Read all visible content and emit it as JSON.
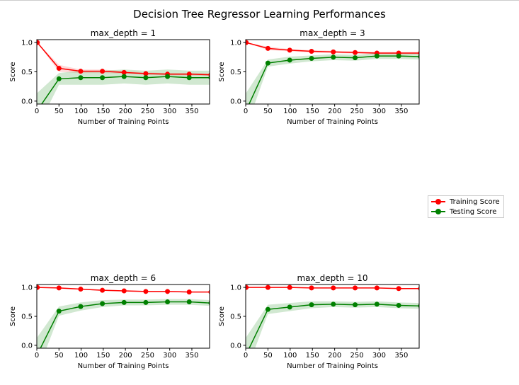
{
  "suptitle": "Decision Tree Regressor Learning Performances",
  "legend": {
    "training": "Training Score",
    "testing": "Testing Score"
  },
  "colors": {
    "training": "#ff0000",
    "testing": "#008000"
  },
  "chart_data": [
    {
      "type": "line",
      "title": "max_depth = 1",
      "xlabel": "Number of Training Points",
      "ylabel": "Score",
      "xlim": [
        0,
        390
      ],
      "ylim": [
        -0.05,
        1.05
      ],
      "xticks": [
        "0",
        "50",
        "100",
        "150",
        "200",
        "250",
        "300",
        "350"
      ],
      "yticks": [
        "0.0",
        "0.5",
        "1.0"
      ],
      "x": [
        1,
        50,
        99,
        148,
        197,
        246,
        295,
        344,
        393
      ],
      "series": [
        {
          "name": "Training Score",
          "values": [
            1.0,
            0.56,
            0.51,
            0.51,
            0.49,
            0.47,
            0.46,
            0.46,
            0.45
          ],
          "band": [
            0.0,
            0.06,
            0.03,
            0.03,
            0.02,
            0.02,
            0.02,
            0.02,
            0.02
          ]
        },
        {
          "name": "Testing Score",
          "values": [
            -0.16,
            0.38,
            0.4,
            0.4,
            0.42,
            0.4,
            0.42,
            0.4,
            0.4
          ],
          "band": [
            0.3,
            0.1,
            0.12,
            0.12,
            0.12,
            0.12,
            0.12,
            0.12,
            0.12
          ]
        }
      ]
    },
    {
      "type": "line",
      "title": "max_depth = 3",
      "xlabel": "Number of Training Points",
      "ylabel": "Score",
      "xlim": [
        0,
        390
      ],
      "ylim": [
        -0.05,
        1.05
      ],
      "xticks": [
        "0",
        "50",
        "100",
        "150",
        "200",
        "250",
        "300",
        "350"
      ],
      "yticks": [
        "0.0",
        "0.5",
        "1.0"
      ],
      "x": [
        1,
        50,
        99,
        148,
        197,
        246,
        295,
        344,
        393
      ],
      "series": [
        {
          "name": "Training Score",
          "values": [
            1.0,
            0.9,
            0.87,
            0.85,
            0.84,
            0.83,
            0.82,
            0.82,
            0.82
          ],
          "band": [
            0.0,
            0.03,
            0.02,
            0.02,
            0.02,
            0.02,
            0.02,
            0.02,
            0.02
          ]
        },
        {
          "name": "Testing Score",
          "values": [
            -0.16,
            0.65,
            0.7,
            0.73,
            0.75,
            0.74,
            0.77,
            0.77,
            0.76
          ],
          "band": [
            0.3,
            0.06,
            0.06,
            0.05,
            0.05,
            0.05,
            0.05,
            0.05,
            0.05
          ]
        }
      ]
    },
    {
      "type": "line",
      "title": "max_depth = 6",
      "xlabel": "Number of Training Points",
      "ylabel": "Score",
      "xlim": [
        0,
        390
      ],
      "ylim": [
        -0.05,
        1.05
      ],
      "xticks": [
        "0",
        "50",
        "100",
        "150",
        "200",
        "250",
        "300",
        "350"
      ],
      "yticks": [
        "0.0",
        "0.5",
        "1.0"
      ],
      "x": [
        1,
        50,
        99,
        148,
        197,
        246,
        295,
        344,
        393
      ],
      "series": [
        {
          "name": "Training Score",
          "values": [
            1.0,
            0.99,
            0.97,
            0.95,
            0.94,
            0.93,
            0.93,
            0.92,
            0.92
          ],
          "band": [
            0.0,
            0.01,
            0.01,
            0.01,
            0.01,
            0.01,
            0.01,
            0.01,
            0.01
          ]
        },
        {
          "name": "Testing Score",
          "values": [
            -0.16,
            0.59,
            0.67,
            0.72,
            0.74,
            0.74,
            0.75,
            0.75,
            0.73
          ],
          "band": [
            0.3,
            0.08,
            0.07,
            0.06,
            0.05,
            0.05,
            0.05,
            0.05,
            0.05
          ]
        }
      ]
    },
    {
      "type": "line",
      "title": "max_depth = 10",
      "xlabel": "Number of Training Points",
      "ylabel": "Score",
      "xlim": [
        0,
        390
      ],
      "ylim": [
        -0.05,
        1.05
      ],
      "xticks": [
        "0",
        "50",
        "100",
        "150",
        "200",
        "250",
        "300",
        "350"
      ],
      "yticks": [
        "0.0",
        "0.5",
        "1.0"
      ],
      "x": [
        1,
        50,
        99,
        148,
        197,
        246,
        295,
        344,
        393
      ],
      "series": [
        {
          "name": "Training Score",
          "values": [
            1.0,
            1.0,
            1.0,
            0.99,
            0.99,
            0.99,
            0.99,
            0.98,
            0.98
          ],
          "band": [
            0.0,
            0.005,
            0.005,
            0.005,
            0.005,
            0.005,
            0.005,
            0.005,
            0.005
          ]
        },
        {
          "name": "Testing Score",
          "values": [
            -0.16,
            0.62,
            0.66,
            0.7,
            0.71,
            0.7,
            0.71,
            0.69,
            0.68
          ],
          "band": [
            0.3,
            0.08,
            0.07,
            0.06,
            0.05,
            0.05,
            0.05,
            0.05,
            0.05
          ]
        }
      ]
    }
  ]
}
